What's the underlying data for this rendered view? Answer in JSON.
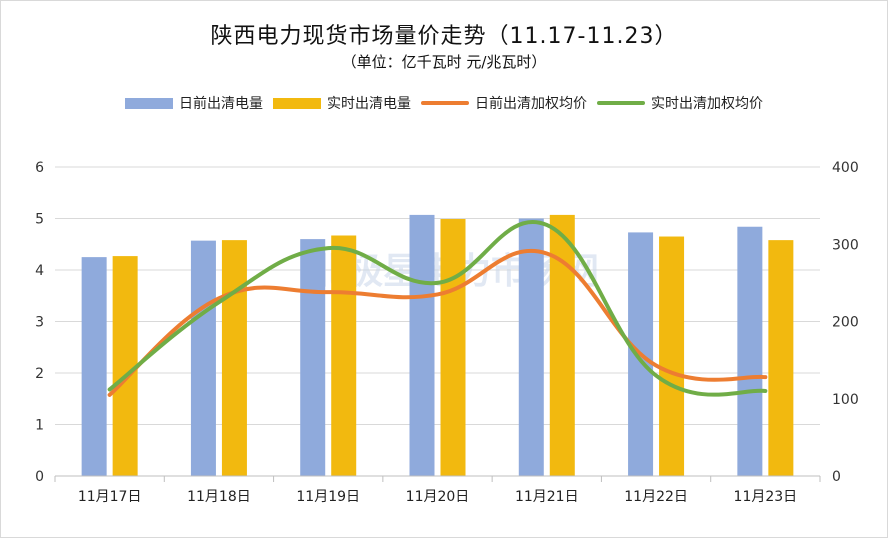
{
  "chart_data": {
    "type": "bar",
    "title": "陕西电力现货市场量价走势（11.17-11.23）",
    "subtitle": "（单位：亿千瓦时 元/兆瓦时）",
    "categories": [
      "11月17日",
      "11月18日",
      "11月19日",
      "11月20日",
      "11月21日",
      "11月22日",
      "11月23日"
    ],
    "left_axis": {
      "min": 0,
      "max": 6,
      "ticks": [
        "0",
        "1",
        "2",
        "3",
        "4",
        "5",
        "6"
      ]
    },
    "right_axis": {
      "min": 0,
      "max": 400,
      "ticks": [
        "0",
        "100",
        "200",
        "300",
        "400"
      ]
    },
    "grid": true,
    "legend_position": "top",
    "watermark": "北极星电力市场网",
    "series": [
      {
        "name": "日前出清电量",
        "type": "bar",
        "axis": "left",
        "color": "#8faadc",
        "values": [
          4.25,
          4.57,
          4.6,
          5.07,
          5.0,
          4.73,
          4.84
        ]
      },
      {
        "name": "实时出清电量",
        "type": "bar",
        "axis": "left",
        "color": "#f2b90f",
        "values": [
          4.27,
          4.58,
          4.67,
          4.99,
          5.07,
          4.65,
          4.58
        ]
      },
      {
        "name": "日前出清加权均价",
        "type": "line",
        "axis": "right",
        "color": "#ed7d31",
        "values": [
          105,
          230,
          238,
          235,
          288,
          143,
          128
        ]
      },
      {
        "name": "实时出清加权均价",
        "type": "line",
        "axis": "right",
        "color": "#70ad47",
        "values": [
          112,
          225,
          295,
          250,
          325,
          130,
          110
        ]
      }
    ]
  }
}
